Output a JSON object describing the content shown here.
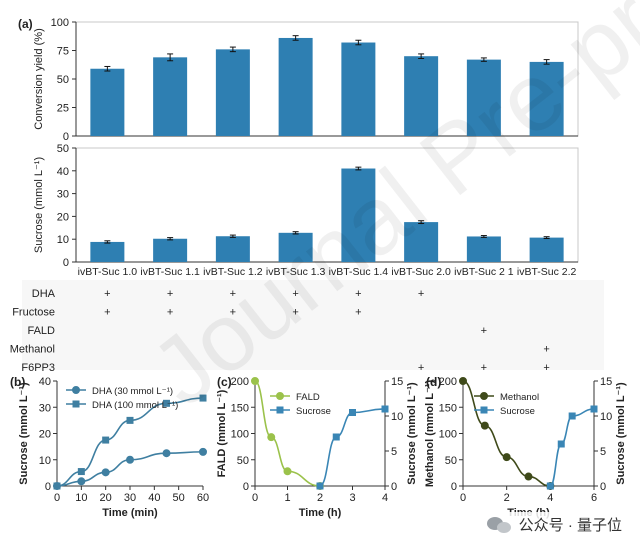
{
  "figure": {
    "watermark_text": "Journal Pre-proofs",
    "wechat_text": "公众号 · 量子位",
    "colors": {
      "bar": "#2e7fb2",
      "teal": "#3f7fa1",
      "green": "#9bc24b",
      "olive": "#3f4a1a",
      "axis": "#333333",
      "sucrose": "#3a86b5"
    }
  },
  "chart_data": [
    {
      "id": "a_top",
      "panel_label": "(a)",
      "type": "bar",
      "categories": [
        "ivBT-Suc 1.0",
        "ivBT-Suc 1.1",
        "ivBT-Suc 1.2",
        "ivBT-Suc 1.3",
        "ivBT-Suc 1.4",
        "ivBT-Suc 2.0",
        "ivBT-Suc 2.1",
        "ivBT-Suc 2.2"
      ],
      "values": [
        59,
        69,
        76,
        86,
        82,
        70,
        67,
        65
      ],
      "errors": [
        2,
        3,
        2,
        2,
        2,
        2,
        1.5,
        2
      ],
      "ylabel": "Conversion yield (%)",
      "ylim": [
        0,
        100
      ],
      "yticks": [
        "0",
        "25",
        "50",
        "75",
        "100"
      ]
    },
    {
      "id": "a_bottom",
      "type": "bar",
      "categories": [
        "ivBT-Suc 1.0",
        "ivBT-Suc 1.1",
        "ivBT-Suc 1.2",
        "ivBT-Suc 1.3",
        "ivBT-Suc 1.4",
        "ivBT-Suc 2.0",
        "ivBT-Suc 2 1",
        "ivBT-Suc 2.2"
      ],
      "values": [
        8.8,
        10.2,
        11.3,
        12.8,
        41.0,
        17.5,
        11.2,
        10.7
      ],
      "errors": [
        0.5,
        0.5,
        0.5,
        0.5,
        0.6,
        0.6,
        0.4,
        0.4
      ],
      "ylabel": "Sucrose (mmol L⁻¹)",
      "ylim": [
        0,
        50
      ],
      "yticks": [
        "0",
        "10",
        "20",
        "30",
        "40",
        "50"
      ]
    },
    {
      "id": "a_table",
      "type": "table",
      "rows": [
        {
          "label": "DHA",
          "marks": [
            1,
            1,
            1,
            1,
            1,
            1,
            0,
            0
          ]
        },
        {
          "label": "Fructose",
          "marks": [
            1,
            1,
            1,
            1,
            1,
            0,
            0,
            0
          ]
        },
        {
          "label": "FALD",
          "marks": [
            0,
            0,
            0,
            0,
            0,
            0,
            1,
            0
          ]
        },
        {
          "label": "Methanol",
          "marks": [
            0,
            0,
            0,
            0,
            0,
            0,
            0,
            1
          ]
        },
        {
          "label": "F6PP3",
          "marks": [
            0,
            0,
            0,
            0,
            0,
            1,
            1,
            1
          ]
        }
      ],
      "mark_symbol": "+"
    },
    {
      "id": "b",
      "panel_label": "(b)",
      "type": "line",
      "xlabel": "Time (min)",
      "ylabel": "Sucrose (mmol L⁻¹)",
      "xlim": [
        0,
        60
      ],
      "ylim": [
        0,
        40
      ],
      "xticks": [
        "0",
        "10",
        "20",
        "30",
        "40",
        "50",
        "60"
      ],
      "yticks": [
        "0",
        "10",
        "20",
        "30",
        "40"
      ],
      "series": [
        {
          "name": "DHA (30 mmol L⁻¹)",
          "marker": "circle",
          "x": [
            0,
            10,
            20,
            30,
            45,
            60
          ],
          "y": [
            0,
            1.8,
            5.2,
            10,
            12.5,
            13
          ]
        },
        {
          "name": "DHA (100 mmol L⁻¹)",
          "marker": "square",
          "x": [
            0,
            10,
            20,
            30,
            45,
            60
          ],
          "y": [
            0,
            5.5,
            17.5,
            25,
            31.5,
            33.5
          ]
        }
      ]
    },
    {
      "id": "c",
      "panel_label": "(c)",
      "type": "line",
      "xlabel": "Time (h)",
      "ylabel_left": "FALD (mmol L⁻¹)",
      "ylabel_right": "Sucrose (mmol L⁻¹)",
      "xlim": [
        0,
        4
      ],
      "ylim_left": [
        0,
        200
      ],
      "ylim_right": [
        0,
        15
      ],
      "xticks": [
        "0",
        "1",
        "2",
        "3",
        "4"
      ],
      "yticks_left": [
        "0",
        "50",
        "100",
        "150",
        "200"
      ],
      "yticks_right": [
        "0",
        "5",
        "10",
        "15"
      ],
      "series": [
        {
          "name": "FALD",
          "axis": "left",
          "marker": "circle",
          "x": [
            0,
            0.5,
            1,
            2
          ],
          "y": [
            200,
            93,
            28,
            0
          ]
        },
        {
          "name": "Sucrose",
          "axis": "right",
          "marker": "square",
          "x": [
            2,
            2.5,
            3,
            4
          ],
          "y": [
            0,
            7,
            10.5,
            11
          ]
        }
      ]
    },
    {
      "id": "d",
      "panel_label": "(d)",
      "type": "line",
      "xlabel": "Time (h)",
      "ylabel_left": "Methanol (mmol L⁻¹)",
      "ylabel_right": "Sucrose (mmol L⁻¹)",
      "xlim": [
        0,
        6
      ],
      "ylim_left": [
        0,
        200
      ],
      "ylim_right": [
        0,
        15
      ],
      "xticks": [
        "0",
        "2",
        "4",
        "6"
      ],
      "yticks_left": [
        "0",
        "50",
        "100",
        "150",
        "200"
      ],
      "yticks_right": [
        "0",
        "5",
        "10",
        "15"
      ],
      "series": [
        {
          "name": "Methanol",
          "axis": "left",
          "marker": "circle",
          "x": [
            0,
            1,
            2,
            3,
            4
          ],
          "y": [
            200,
            115,
            55,
            18,
            0
          ]
        },
        {
          "name": "Sucrose",
          "axis": "right",
          "marker": "square",
          "x": [
            4,
            4.5,
            5,
            6
          ],
          "y": [
            0,
            6,
            10,
            11
          ]
        }
      ]
    }
  ]
}
